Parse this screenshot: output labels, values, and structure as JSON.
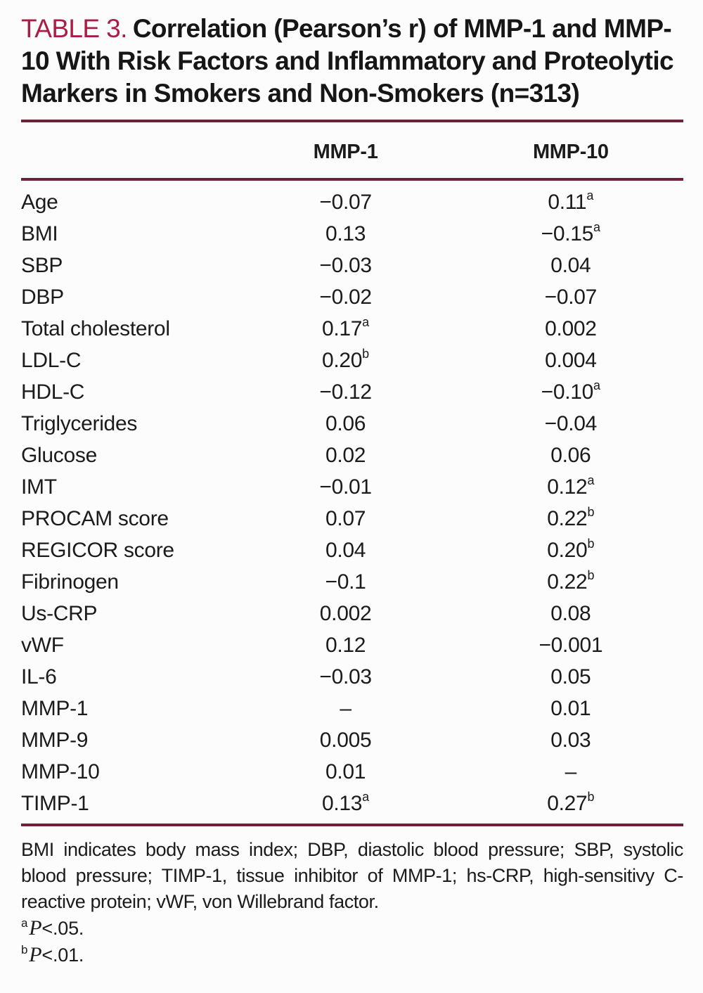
{
  "header": {
    "label": "TABLE 3.",
    "caption": "Correlation (Pearson’s r) of MMP-1 and MMP-10 With Risk Factors and Inflammatory and Proteolytic Markers in Smokers and Non-Smokers (n=313)"
  },
  "table": {
    "columns": {
      "mmp1": "MMP-1",
      "mmp10": "MMP-10"
    },
    "rows": [
      {
        "label": "Age",
        "mmp1": "−0.07",
        "mmp1_sup": "",
        "mmp10": "0.11",
        "mmp10_sup": "a"
      },
      {
        "label": "BMI",
        "mmp1": "0.13",
        "mmp1_sup": "",
        "mmp10": "−0.15",
        "mmp10_sup": "a"
      },
      {
        "label": "SBP",
        "mmp1": "−0.03",
        "mmp1_sup": "",
        "mmp10": "0.04",
        "mmp10_sup": ""
      },
      {
        "label": "DBP",
        "mmp1": "−0.02",
        "mmp1_sup": "",
        "mmp10": "−0.07",
        "mmp10_sup": ""
      },
      {
        "label": "Total cholesterol",
        "mmp1": "0.17",
        "mmp1_sup": "a",
        "mmp10": "0.002",
        "mmp10_sup": ""
      },
      {
        "label": "LDL-C",
        "mmp1": "0.20",
        "mmp1_sup": "b",
        "mmp10": "0.004",
        "mmp10_sup": ""
      },
      {
        "label": "HDL-C",
        "mmp1": "−0.12",
        "mmp1_sup": "",
        "mmp10": "−0.10",
        "mmp10_sup": "a"
      },
      {
        "label": "Triglycerides",
        "mmp1": "0.06",
        "mmp1_sup": "",
        "mmp10": "−0.04",
        "mmp10_sup": ""
      },
      {
        "label": "Glucose",
        "mmp1": "0.02",
        "mmp1_sup": "",
        "mmp10": "0.06",
        "mmp10_sup": ""
      },
      {
        "label": "IMT",
        "mmp1": "−0.01",
        "mmp1_sup": "",
        "mmp10": "0.12",
        "mmp10_sup": "a"
      },
      {
        "label": "PROCAM score",
        "mmp1": "0.07",
        "mmp1_sup": "",
        "mmp10": "0.22",
        "mmp10_sup": "b"
      },
      {
        "label": "REGICOR score",
        "mmp1": "0.04",
        "mmp1_sup": "",
        "mmp10": "0.20",
        "mmp10_sup": "b"
      },
      {
        "label": "Fibrinogen",
        "mmp1": "−0.1",
        "mmp1_sup": "",
        "mmp10": "0.22",
        "mmp10_sup": "b"
      },
      {
        "label": "Us-CRP",
        "mmp1": "0.002",
        "mmp1_sup": "",
        "mmp10": "0.08",
        "mmp10_sup": ""
      },
      {
        "label": "vWF",
        "mmp1": "0.12",
        "mmp1_sup": "",
        "mmp10": "−0.001",
        "mmp10_sup": ""
      },
      {
        "label": "IL-6",
        "mmp1": "−0.03",
        "mmp1_sup": "",
        "mmp10": "0.05",
        "mmp10_sup": ""
      },
      {
        "label": "MMP-1",
        "mmp1": "–",
        "mmp1_sup": "",
        "mmp10": "0.01",
        "mmp10_sup": ""
      },
      {
        "label": "MMP-9",
        "mmp1": "0.005",
        "mmp1_sup": "",
        "mmp10": "0.03",
        "mmp10_sup": ""
      },
      {
        "label": "MMP-10",
        "mmp1": "0.01",
        "mmp1_sup": "",
        "mmp10": "–",
        "mmp10_sup": ""
      },
      {
        "label": "TIMP-1",
        "mmp1": "0.13",
        "mmp1_sup": "a",
        "mmp10": "0.27",
        "mmp10_sup": "b"
      }
    ]
  },
  "footnotes": {
    "abbreviations": "BMI indicates body mass index; DBP, diastolic blood pressure; SBP, systolic blood pressure; TIMP-1, tissue inhibitor of MMP-1; hs-CRP, high-sensitivy C-reactive protein; vWF, von Willebrand factor.",
    "notes": [
      {
        "sup": "a",
        "p": "P",
        "text": "<.05."
      },
      {
        "sup": "b",
        "p": "P",
        "text": "<.01."
      }
    ]
  },
  "colors": {
    "accent_title": "#a81e46",
    "rule": "#6e2239",
    "text": "#1b1b1b",
    "background": "#fcfcfc"
  }
}
